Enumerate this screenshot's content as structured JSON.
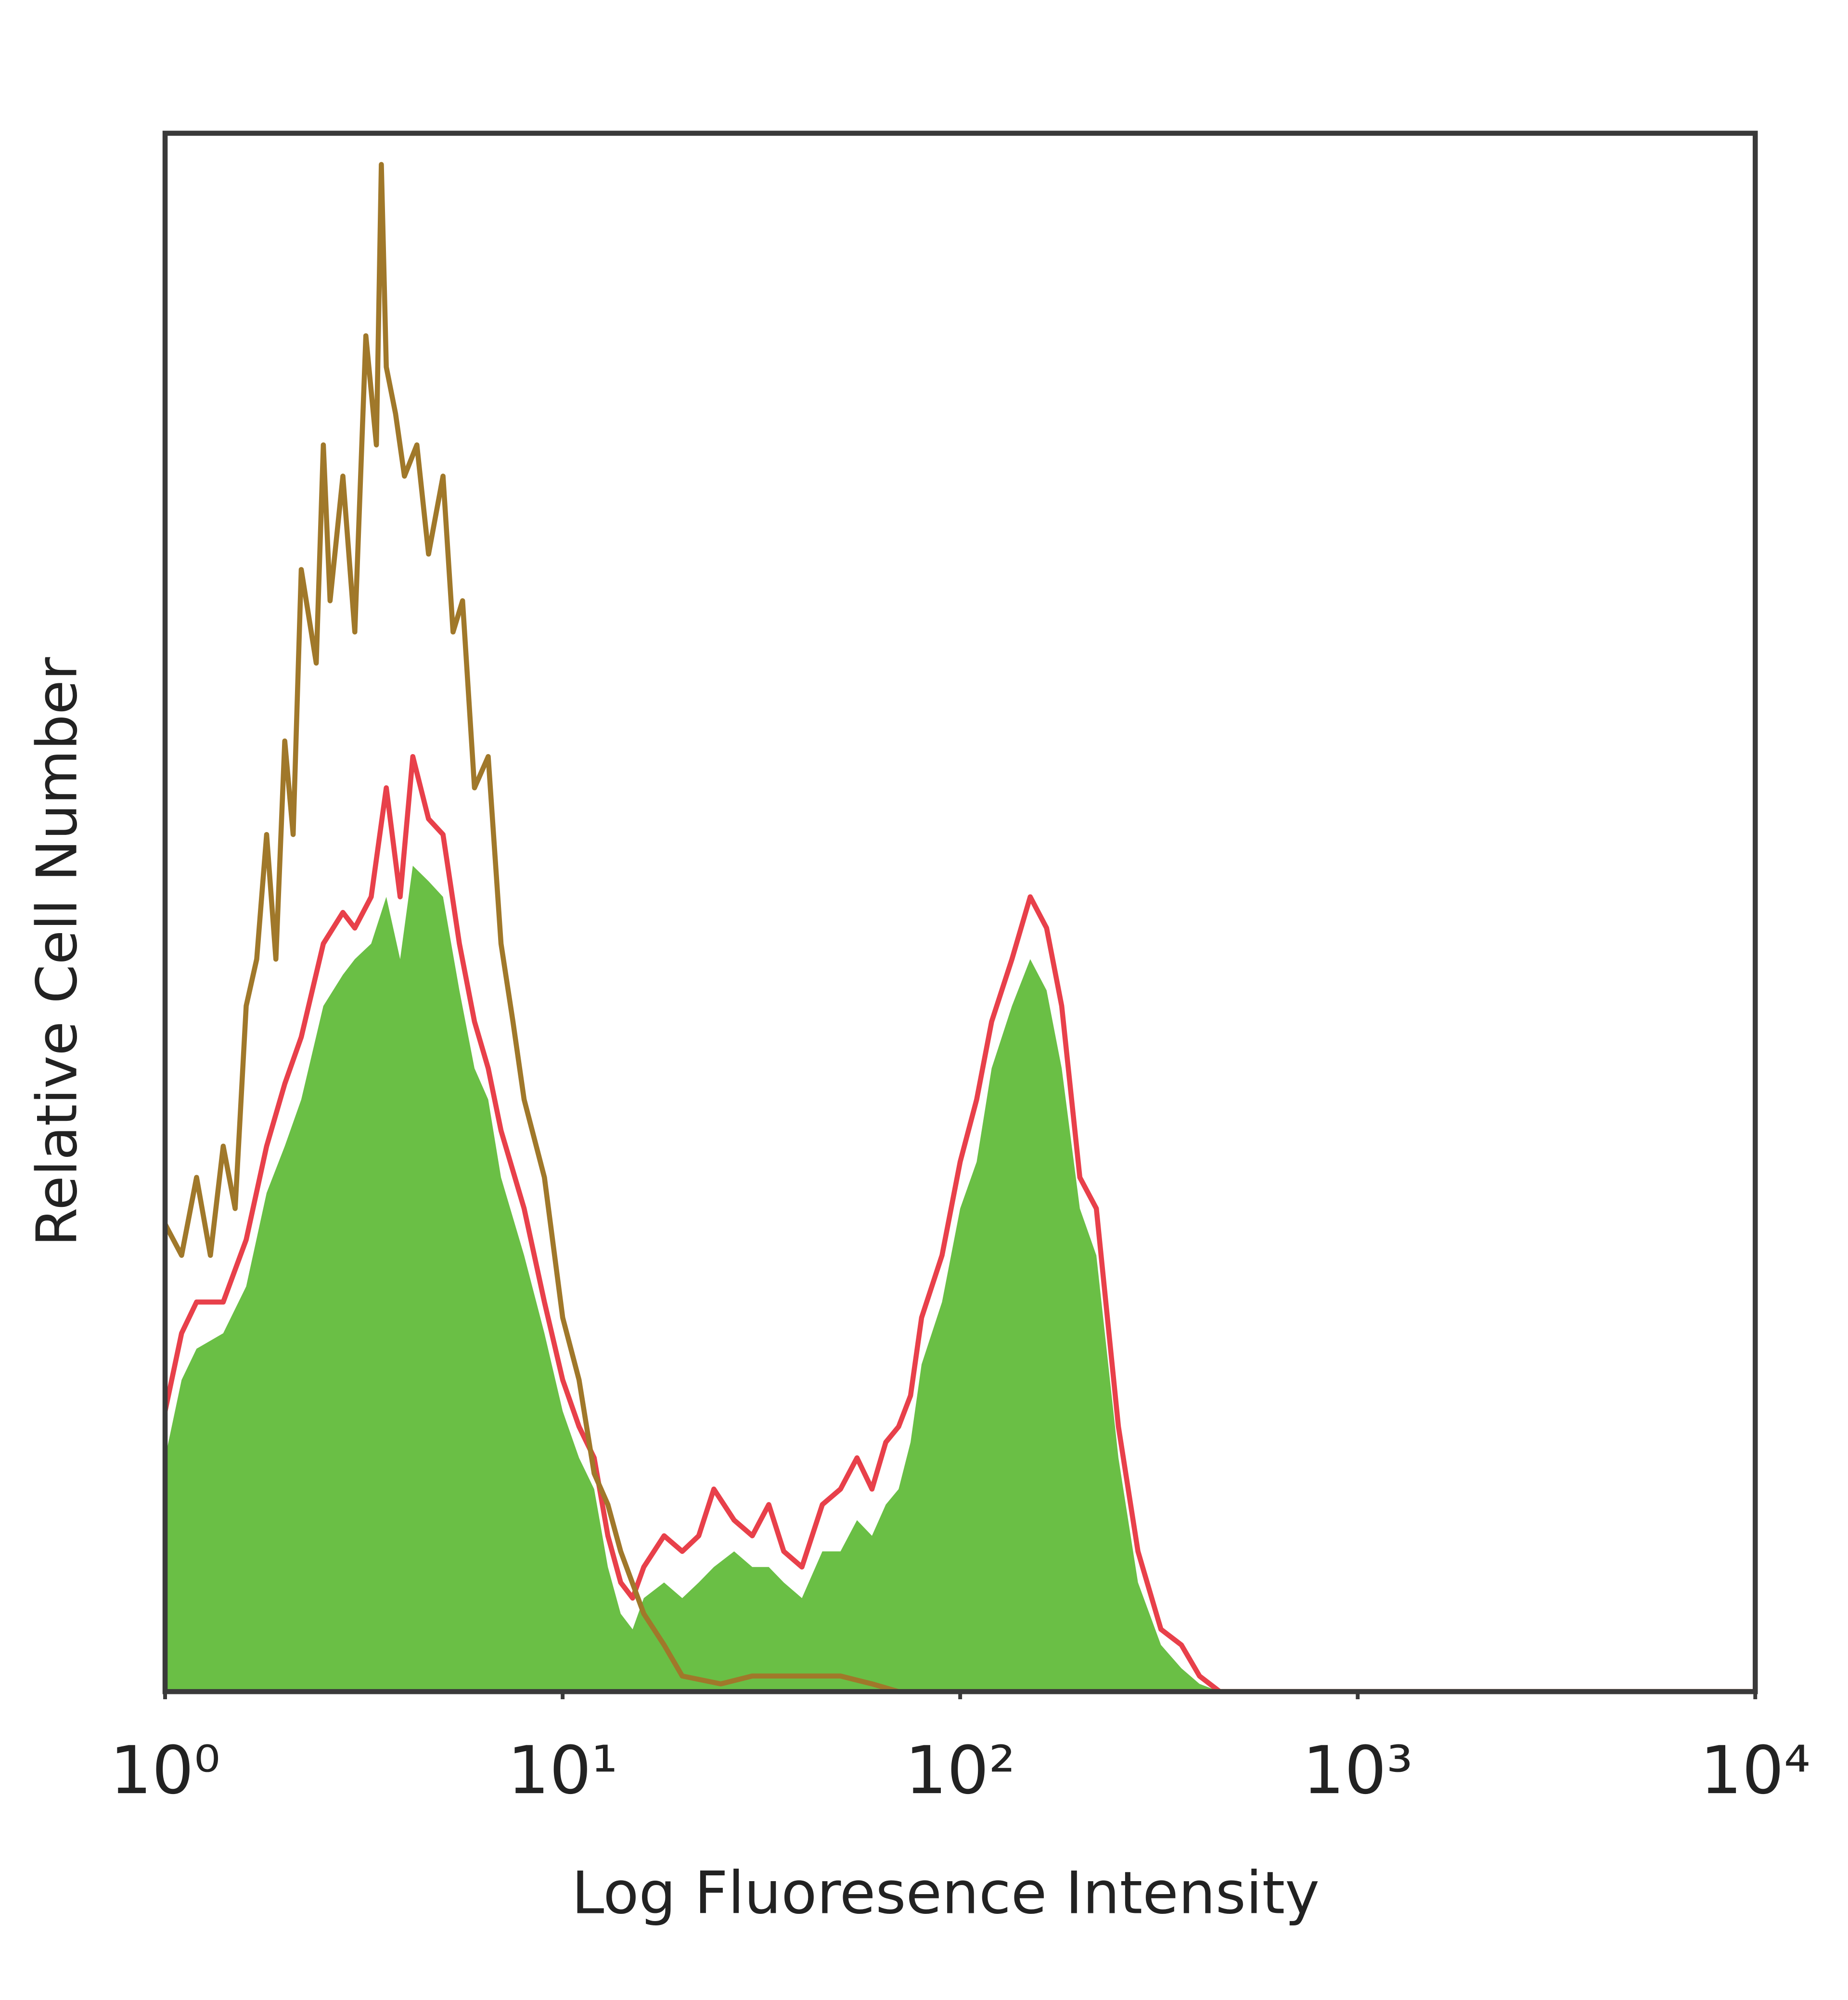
{
  "chart_data": {
    "type": "histogram-overlay",
    "xlabel": "Log Fluoresence Intensity",
    "ylabel": "Relative Cell Number",
    "xscale": "log",
    "xlim": [
      1,
      10000
    ],
    "ylim": [
      0,
      100
    ],
    "xticks": [
      {
        "value": 1,
        "label": "10⁰"
      },
      {
        "value": 10,
        "label": "10¹"
      },
      {
        "value": 100,
        "label": "10²"
      },
      {
        "value": 1000,
        "label": "10³"
      },
      {
        "value": 10000,
        "label": "10⁴"
      }
    ],
    "series": [
      {
        "color": "#6abf45",
        "fill": true,
        "x": [
          1.0,
          1.1,
          1.2,
          1.4,
          1.6,
          1.8,
          2.0,
          2.2,
          2.5,
          2.8,
          3.0,
          3.3,
          3.6,
          3.9,
          4.2,
          4.6,
          5.0,
          5.5,
          6.0,
          6.5,
          7.0,
          8.0,
          9.0,
          10,
          11,
          12,
          13,
          14,
          15,
          16,
          18,
          20,
          22,
          24,
          27,
          30,
          33,
          36,
          40,
          45,
          50,
          55,
          60,
          65,
          70,
          75,
          80,
          90,
          100,
          110,
          120,
          135,
          150,
          165,
          180,
          200,
          220,
          250,
          280,
          320,
          360,
          400,
          450,
          10000
        ],
        "values": [
          15,
          20,
          22,
          23,
          26,
          32,
          35,
          38,
          44,
          46,
          47,
          48,
          51,
          47,
          53,
          52,
          51,
          45,
          40,
          38,
          33,
          28,
          23,
          18,
          15,
          13,
          8,
          5,
          4,
          6,
          7,
          6,
          7,
          8,
          9,
          8,
          8,
          7,
          6,
          9,
          9,
          11,
          10,
          12,
          13,
          16,
          21,
          25,
          31,
          34,
          40,
          44,
          47,
          45,
          40,
          31,
          28,
          15,
          7,
          3,
          1.5,
          0.5,
          0,
          0
        ]
      },
      {
        "color": "#e8404a",
        "fill": false,
        "x": [
          1.0,
          1.1,
          1.2,
          1.4,
          1.6,
          1.8,
          2.0,
          2.2,
          2.5,
          2.8,
          3.0,
          3.3,
          3.6,
          3.9,
          4.2,
          4.6,
          5.0,
          5.5,
          6.0,
          6.5,
          7.0,
          8.0,
          9.0,
          10,
          11,
          12,
          13,
          14,
          15,
          16,
          18,
          20,
          22,
          24,
          27,
          30,
          33,
          36,
          40,
          45,
          50,
          55,
          60,
          65,
          70,
          75,
          80,
          90,
          100,
          110,
          120,
          135,
          150,
          165,
          180,
          200,
          220,
          250,
          280,
          320,
          360,
          400,
          450,
          10000
        ],
        "values": [
          18,
          23,
          25,
          25,
          29,
          35,
          39,
          42,
          48,
          50,
          49,
          51,
          58,
          51,
          60,
          56,
          55,
          48,
          43,
          40,
          36,
          31,
          25,
          20,
          17,
          15,
          10,
          7,
          6,
          8,
          10,
          9,
          10,
          13,
          11,
          10,
          12,
          9,
          8,
          12,
          13,
          15,
          13,
          16,
          17,
          19,
          24,
          28,
          34,
          38,
          43,
          47,
          51,
          49,
          44,
          33,
          31,
          17,
          9,
          4,
          3,
          1,
          0,
          0
        ]
      },
      {
        "color": "#a0782a",
        "fill": false,
        "x": [
          1.0,
          1.1,
          1.2,
          1.3,
          1.4,
          1.5,
          1.6,
          1.7,
          1.8,
          1.9,
          2.0,
          2.1,
          2.2,
          2.4,
          2.5,
          2.6,
          2.8,
          3.0,
          3.2,
          3.4,
          3.5,
          3.6,
          3.8,
          4.0,
          4.3,
          4.6,
          5.0,
          5.3,
          5.6,
          6.0,
          6.5,
          7.0,
          7.5,
          8.0,
          9.0,
          10,
          11,
          12,
          13,
          14,
          16,
          18,
          20,
          25,
          30,
          40,
          50,
          60,
          70,
          100,
          1000,
          10000
        ],
        "values": [
          30,
          28,
          33,
          28,
          35,
          31,
          44,
          47,
          55,
          47,
          61,
          55,
          72,
          66,
          80,
          70,
          78,
          68,
          87,
          80,
          98,
          85,
          82,
          78,
          80,
          73,
          78,
          68,
          70,
          58,
          60,
          48,
          43,
          38,
          33,
          24,
          20,
          14,
          12,
          9,
          5,
          3,
          1,
          0.5,
          1,
          1,
          1,
          0.5,
          0,
          0,
          0,
          0
        ]
      }
    ]
  }
}
